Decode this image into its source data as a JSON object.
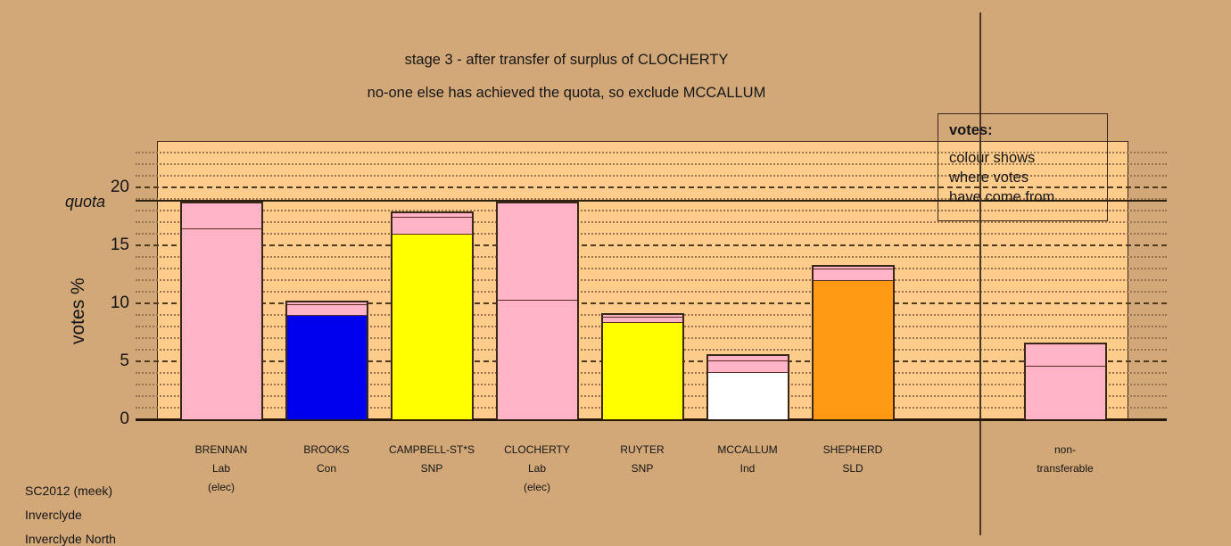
{
  "titles": {
    "line1": "stage 3 - after transfer of surplus of CLOCHERTY",
    "line2": "no-one else has achieved the quota, so exclude MCCALLUM"
  },
  "legend": {
    "heading": "votes:",
    "body_lines": [
      "colour shows",
      "where votes",
      "have come from"
    ]
  },
  "footer": [
    "SC2012 (meek)",
    "Inverclyde",
    "Inverclyde North"
  ],
  "chart_data": {
    "type": "bar",
    "stacked": true,
    "title": "stage 3 - after transfer of surplus of CLOCHERTY",
    "subtitle": "no-one else has achieved the quota, so exclude MCCALLUM",
    "ylabel": "votes %",
    "ylim": [
      0,
      24
    ],
    "yticks": [
      20,
      15,
      10,
      5,
      0
    ],
    "grid": {
      "minor_step": 1,
      "major_step": 5,
      "minor_style": "dotted",
      "major_style": "dashed"
    },
    "quota": {
      "label": "quota",
      "value": 18.8
    },
    "legend_note": "colour shows where votes have come from",
    "colors": {
      "page_bg": "#D2A878",
      "panel_bg": "#FFCC8C",
      "text": "#151515"
    },
    "palette": {
      "pink": "#FFB3C6",
      "blue": "#0000EE",
      "yellow": "#FFFF00",
      "white": "#FFFFFF",
      "orange": "#FF9913"
    },
    "party_colors": {
      "Lab": "pink",
      "Con": "blue",
      "SNP": "yellow",
      "Ind": "white",
      "SLD": "orange"
    },
    "bars": [
      {
        "name": "BRENNAN",
        "party": "Lab",
        "status": "(elec)",
        "total": 18.8,
        "segments": [
          {
            "color": "pink",
            "value": 16.5
          },
          {
            "color": "pink",
            "value": 2.3
          }
        ]
      },
      {
        "name": "BROOKS",
        "party": "Con",
        "status": "",
        "total": 10.2,
        "segments": [
          {
            "color": "blue",
            "value": 9.1
          },
          {
            "color": "pink",
            "value": 0.9
          },
          {
            "color": "pink",
            "value": 0.2
          }
        ]
      },
      {
        "name": "CAMPBELL-ST*S",
        "party": "SNP",
        "status": "",
        "total": 17.9,
        "segments": [
          {
            "color": "yellow",
            "value": 16.1
          },
          {
            "color": "pink",
            "value": 1.4
          },
          {
            "color": "pink",
            "value": 0.4
          }
        ]
      },
      {
        "name": "CLOCHERTY",
        "party": "Lab",
        "status": "(elec)",
        "total": 18.8,
        "segments": [
          {
            "color": "pink",
            "value": 10.4
          },
          {
            "color": "pink",
            "value": 8.4
          }
        ]
      },
      {
        "name": "RUYTER",
        "party": "SNP",
        "status": "",
        "total": 9.15,
        "segments": [
          {
            "color": "yellow",
            "value": 8.45
          },
          {
            "color": "pink",
            "value": 0.45
          },
          {
            "color": "pink",
            "value": 0.25
          }
        ]
      },
      {
        "name": "MCCALLUM",
        "party": "Ind",
        "status": "",
        "total": 5.65,
        "segments": [
          {
            "color": "white",
            "value": 4.15
          },
          {
            "color": "pink",
            "value": 1.0
          },
          {
            "color": "pink",
            "value": 0.5
          }
        ]
      },
      {
        "name": "SHEPHERD",
        "party": "SLD",
        "status": "",
        "total": 13.3,
        "segments": [
          {
            "color": "orange",
            "value": 12.05
          },
          {
            "color": "pink",
            "value": 1.0
          },
          {
            "color": "pink",
            "value": 0.25
          }
        ]
      },
      {
        "name": "non-",
        "party": "transferable",
        "status": "",
        "total": 6.65,
        "group": "non-transferable",
        "segments": [
          {
            "color": "pink",
            "value": 4.7
          },
          {
            "color": "pink",
            "value": 1.95
          }
        ]
      }
    ]
  }
}
